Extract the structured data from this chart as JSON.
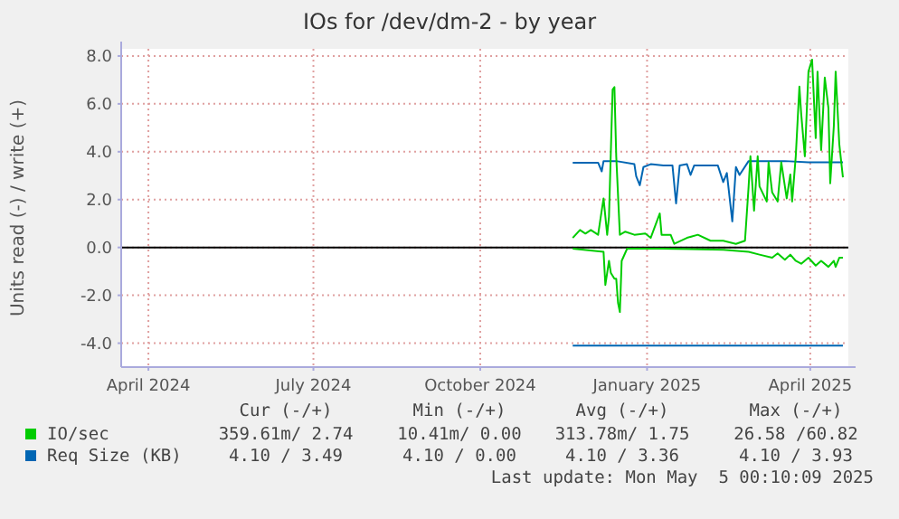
{
  "chart_data": {
    "type": "line",
    "title": "IOs for /dev/dm-2 - by year",
    "ylabel": "Units read (-) / write (+)",
    "xlim": [
      "2024-03-17",
      "2025-04-22"
    ],
    "xticks": [
      {
        "value": "2024-04-01",
        "label": "April 2024"
      },
      {
        "value": "2024-07-01",
        "label": "July 2024"
      },
      {
        "value": "2024-10-01",
        "label": "October 2024"
      },
      {
        "value": "2025-01-01",
        "label": "January 2025"
      },
      {
        "value": "2025-04-01",
        "label": "April 2025"
      }
    ],
    "ylim": [
      -5,
      8.3
    ],
    "yticks": [
      {
        "value": -4,
        "label": "-4.0"
      },
      {
        "value": -2,
        "label": "-2.0"
      },
      {
        "value": 0,
        "label": "0.0"
      },
      {
        "value": 2,
        "label": "2.0"
      },
      {
        "value": 4,
        "label": "4.0"
      },
      {
        "value": 6,
        "label": "6.0"
      },
      {
        "value": 8,
        "label": "8.0"
      }
    ],
    "grid": true,
    "legend": "bottom",
    "marker": "none",
    "line_style": "solid",
    "ref_lines": [
      {
        "axis": "y",
        "value": 0,
        "color": "#000000"
      }
    ],
    "series": [
      {
        "name": "IO/sec",
        "color": "#00cc00",
        "x": [
          "2024-11-21",
          "2024-11-25",
          "2024-11-28",
          "2024-12-01",
          "2024-12-05",
          "2024-12-06",
          "2024-12-08",
          "2024-12-10",
          "2024-12-11",
          "2024-12-13",
          "2024-12-14",
          "2024-12-15",
          "2024-12-17",
          "2024-12-20",
          "2024-12-25",
          "2024-12-31",
          "2025-01-03",
          "2025-01-08",
          "2025-01-09",
          "2025-01-14",
          "2025-01-16",
          "2025-01-23",
          "2025-01-29",
          "2025-02-05",
          "2025-02-12",
          "2025-02-19",
          "2025-02-24",
          "2025-02-26",
          "2025-02-27",
          "2025-03-01",
          "2025-03-03",
          "2025-03-04",
          "2025-03-08",
          "2025-03-09",
          "2025-03-11",
          "2025-03-14",
          "2025-03-16",
          "2025-03-19",
          "2025-03-21",
          "2025-03-22",
          "2025-03-24",
          "2025-03-26",
          "2025-03-27",
          "2025-03-29",
          "2025-03-31",
          "2025-04-02",
          "2025-04-04",
          "2025-04-05",
          "2025-04-07",
          "2025-04-09",
          "2025-04-11",
          "2025-04-12",
          "2025-04-14",
          "2025-04-15",
          "2025-04-17",
          "2025-04-19"
        ],
        "values": [
          0.4,
          0.73,
          0.58,
          0.73,
          0.53,
          1.04,
          2.05,
          0.53,
          1.29,
          6.6,
          6.7,
          3.8,
          0.53,
          0.66,
          0.53,
          0.58,
          0.4,
          1.42,
          0.53,
          0.53,
          0.15,
          0.4,
          0.53,
          0.28,
          0.28,
          0.15,
          0.28,
          2.55,
          3.81,
          1.54,
          3.81,
          2.55,
          1.92,
          3.56,
          2.3,
          1.92,
          3.56,
          2.05,
          3.05,
          1.92,
          3.81,
          6.72,
          5.58,
          3.81,
          7.35,
          7.85,
          4.57,
          7.35,
          4.07,
          7.1,
          5.83,
          2.68,
          5.08,
          7.35,
          4.32,
          2.93
        ]
      },
      {
        "color": "#00cc00",
        "x": [
          "2024-11-21",
          "2024-12-08",
          "2024-12-09",
          "2024-12-11",
          "2024-12-12",
          "2024-12-14",
          "2024-12-15",
          "2024-12-16",
          "2024-12-17",
          "2024-12-18",
          "2024-12-21",
          "2025-01-09",
          "2025-02-12",
          "2025-02-26",
          "2025-03-04",
          "2025-03-11",
          "2025-03-14",
          "2025-03-18",
          "2025-03-21",
          "2025-03-24",
          "2025-03-27",
          "2025-03-31",
          "2025-04-04",
          "2025-04-07",
          "2025-04-11",
          "2025-04-14",
          "2025-04-15",
          "2025-04-17",
          "2025-04-19"
        ],
        "values": [
          -0.05,
          -0.18,
          -1.57,
          -0.56,
          -1.06,
          -1.31,
          -1.31,
          -2.32,
          -2.7,
          -0.56,
          -0.05,
          -0.05,
          -0.1,
          -0.18,
          -0.3,
          -0.43,
          -0.25,
          -0.51,
          -0.3,
          -0.56,
          -0.68,
          -0.43,
          -0.76,
          -0.56,
          -0.81,
          -0.56,
          -0.81,
          -0.43,
          -0.43
        ]
      },
      {
        "name": "Req Size (KB)",
        "color": "#0066b3",
        "x": [
          "2024-11-21",
          "2024-12-05",
          "2024-12-07",
          "2024-12-08",
          "2024-12-15",
          "2024-12-25",
          "2024-12-26",
          "2024-12-28",
          "2024-12-30",
          "2025-01-03",
          "2025-01-10",
          "2025-01-15",
          "2025-01-17",
          "2025-01-19",
          "2025-01-23",
          "2025-01-25",
          "2025-01-27",
          "2025-02-09",
          "2025-02-12",
          "2025-02-14",
          "2025-02-17",
          "2025-02-19",
          "2025-02-21",
          "2025-02-26",
          "2025-03-18",
          "2025-03-31",
          "2025-04-19"
        ],
        "values": [
          3.54,
          3.54,
          3.18,
          3.61,
          3.61,
          3.48,
          2.98,
          2.6,
          3.36,
          3.48,
          3.43,
          3.43,
          1.84,
          3.43,
          3.48,
          3.03,
          3.43,
          3.43,
          2.73,
          3.11,
          1.09,
          3.36,
          3.03,
          3.61,
          3.61,
          3.56,
          3.56
        ]
      },
      {
        "color": "#0066b3",
        "x": [
          "2024-11-21",
          "2025-04-19"
        ],
        "values": [
          -4.1,
          -4.1
        ]
      }
    ],
    "annotations": [
      "Cur (-/+)",
      "Min (-/+)",
      "Avg (-/+)",
      "Max (-/+)",
      "359.61m/ 2.74",
      "10.41m/ 0.00",
      "313.78m/ 1.75",
      "26.58 /60.82",
      "4.10 / 3.49",
      "4.10 / 0.00",
      "4.10 / 3.36",
      "4.10 / 3.93",
      "Last update: Mon May  5 00:10:09 2025"
    ]
  }
}
